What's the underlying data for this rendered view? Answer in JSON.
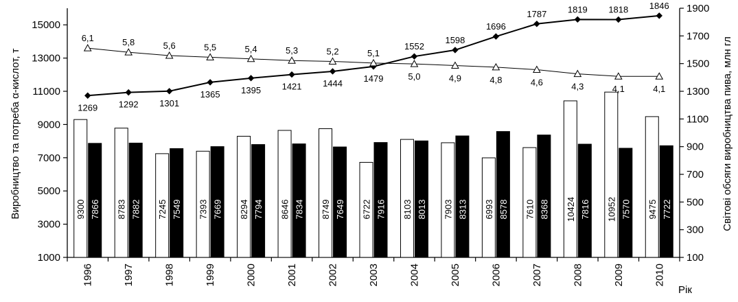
{
  "chart_data": {
    "type": "bar",
    "categories": [
      "1996",
      "1997",
      "1998",
      "1999",
      "2000",
      "2001",
      "2002",
      "2003",
      "2004",
      "2005",
      "2006",
      "2007",
      "2008",
      "2009",
      "2010"
    ],
    "xlabel": "Рік",
    "ylabel": "Виробництво та потреба α-кислот, т",
    "y2label": "Світові обсяги виробництва пива, млн гл",
    "ylim": [
      1000,
      16000
    ],
    "y2lim": [
      100,
      1900
    ],
    "yticks": [
      1000,
      3000,
      5000,
      7000,
      9000,
      11000,
      13000,
      15000
    ],
    "y2ticks": [
      100,
      300,
      500,
      700,
      900,
      1100,
      1300,
      1500,
      1700,
      1900
    ],
    "grid": false,
    "legend": "none",
    "bar_series": [
      {
        "color": "#ffffff",
        "values": [
          9300,
          8783,
          7245,
          7393,
          8294,
          8646,
          8749,
          6722,
          8103,
          7903,
          6993,
          7610,
          10424,
          10952,
          9475
        ]
      },
      {
        "color": "#000000",
        "values": [
          7866,
          7882,
          7549,
          7669,
          7794,
          7834,
          7649,
          7916,
          8013,
          8313,
          8578,
          8368,
          7816,
          7570,
          7722
        ]
      }
    ],
    "line_series": [
      {
        "axis": "y2",
        "marker": "diamond",
        "values": [
          1269,
          1292,
          1301,
          1365,
          1395,
          1421,
          1444,
          1479,
          1552,
          1598,
          1696,
          1787,
          1819,
          1818,
          1846
        ]
      },
      {
        "axis": "y",
        "marker": "triangle",
        "values": [
          13600,
          13350,
          13150,
          13050,
          12950,
          12850,
          12800,
          12700,
          12650,
          12550,
          12450,
          12300,
          12050,
          11900,
          11900
        ],
        "labels": [
          "6,1",
          "5,8",
          "5,6",
          "5,5",
          "5,4",
          "5,3",
          "5,2",
          "5,1",
          "5,0",
          "4,9",
          "4,8",
          "4,6",
          "4,3",
          "4,1",
          "4,1"
        ]
      }
    ]
  }
}
